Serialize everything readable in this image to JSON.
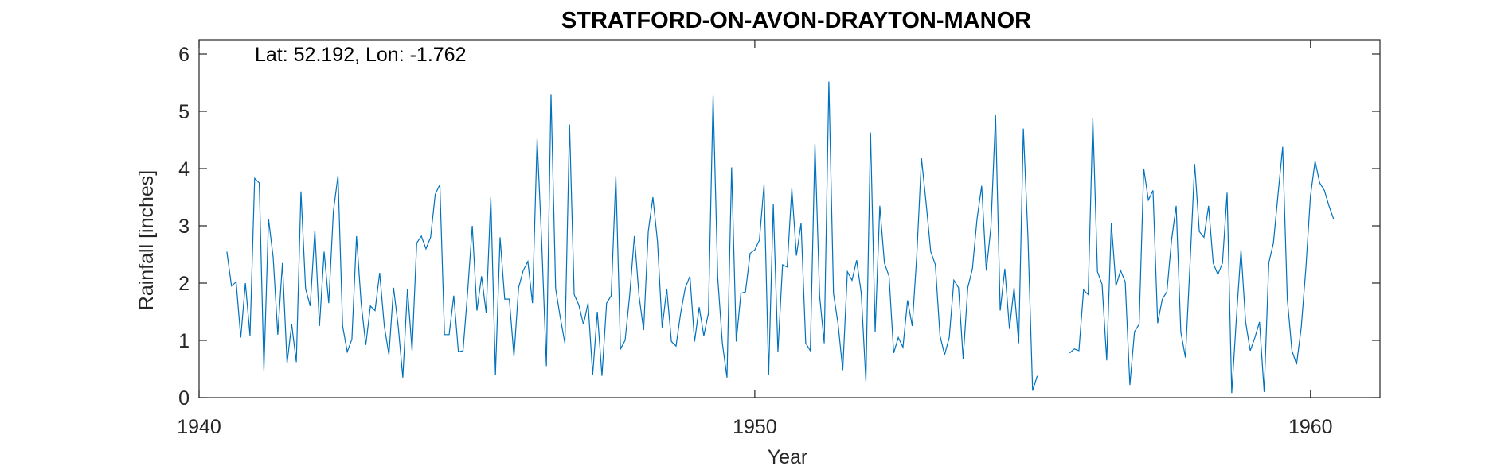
{
  "chart_data": {
    "type": "line",
    "title": "STRATFORD-ON-AVON-DRAYTON-MANOR",
    "annotation": "Lat: 52.192, Lon: -1.762",
    "xlabel": "Year",
    "ylabel": "Rainfall [inches]",
    "xlim": [
      1940,
      1961.25
    ],
    "ylim": [
      0,
      6.25
    ],
    "xticks": [
      1940,
      1950,
      1960
    ],
    "yticks": [
      0,
      1,
      2,
      3,
      4,
      5,
      6
    ],
    "grid": false,
    "line_color": "#0072BD",
    "series": [
      {
        "x_start_year": 1940.5,
        "step_years": 0.08333,
        "values": [
          2.55,
          1.95,
          2.02,
          1.05,
          2.0,
          1.08,
          3.83,
          3.75,
          0.48,
          3.12,
          2.45,
          1.1,
          2.35,
          0.6,
          1.28,
          0.62,
          3.6,
          1.9,
          1.6,
          2.92,
          1.25,
          2.55,
          1.65,
          3.25,
          3.88,
          1.25,
          0.8,
          1.02,
          2.82,
          1.65,
          0.92,
          1.6,
          1.52,
          2.18,
          1.25,
          0.75,
          1.92,
          1.25,
          0.35,
          1.9,
          0.82,
          2.7,
          2.82,
          2.6,
          2.8,
          3.55,
          3.72,
          1.1,
          1.1,
          1.78,
          0.8,
          0.82,
          1.85,
          3.0,
          1.52,
          2.12,
          1.48,
          3.5,
          0.4,
          2.8,
          1.72,
          1.72,
          0.72,
          1.92,
          2.22,
          2.38,
          1.65,
          4.52,
          2.7,
          0.55,
          5.3,
          1.9,
          1.4,
          0.95,
          4.77,
          1.8,
          1.62,
          1.28,
          1.65,
          0.4,
          1.5,
          0.38,
          1.65,
          1.78,
          3.87,
          0.85,
          1.0,
          1.8,
          2.82,
          1.78,
          1.18,
          2.9,
          3.5,
          2.72,
          1.22,
          1.9,
          0.98,
          0.9,
          1.48,
          1.92,
          2.12,
          0.98,
          1.58,
          1.08,
          1.48,
          5.27,
          2.1,
          0.95,
          0.35,
          4.02,
          0.98,
          1.82,
          1.85,
          2.52,
          2.58,
          2.75,
          3.72,
          0.4,
          3.38,
          0.8,
          2.32,
          2.28,
          3.65,
          2.48,
          3.05,
          0.95,
          0.82,
          4.43,
          1.78,
          0.95,
          5.52,
          1.82,
          1.28,
          0.48,
          2.2,
          2.05,
          2.4,
          1.82,
          0.28,
          4.63,
          1.15,
          3.35,
          2.35,
          2.12,
          0.78,
          1.05,
          0.88,
          1.7,
          1.25,
          2.5,
          4.18,
          3.4,
          2.55,
          2.32,
          1.08,
          0.75,
          1.05,
          2.05,
          1.92,
          0.68,
          1.92,
          2.25,
          3.12,
          3.7,
          2.22,
          2.98,
          4.93,
          1.52,
          2.25,
          1.2,
          1.92,
          0.95,
          4.7,
          2.8,
          0.12,
          0.38,
          null,
          null,
          null,
          null,
          null,
          null,
          0.78,
          0.85,
          0.82,
          1.88,
          1.8,
          4.88,
          2.2,
          1.98,
          0.65,
          3.05,
          1.95,
          2.22,
          2.02,
          0.22,
          1.15,
          1.28,
          4.0,
          3.45,
          3.62,
          1.3,
          1.72,
          1.85,
          2.75,
          3.35,
          1.15,
          0.7,
          2.35,
          4.08,
          2.9,
          2.8,
          3.35,
          2.35,
          2.15,
          2.35,
          3.58,
          0.08,
          1.38,
          2.58,
          1.32,
          0.82,
          1.05,
          1.32,
          0.1,
          2.35,
          2.7,
          3.55,
          4.38,
          1.72,
          0.82,
          0.58,
          1.22,
          2.25,
          3.52,
          4.13,
          3.75,
          3.62,
          3.35,
          3.12
        ]
      }
    ]
  }
}
